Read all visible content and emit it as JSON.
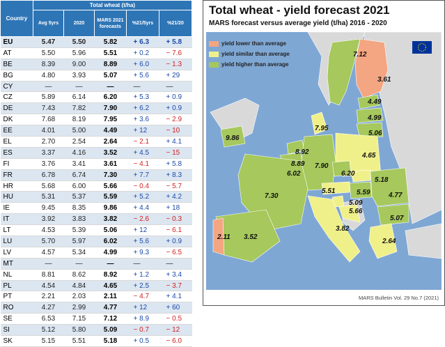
{
  "table": {
    "headers": {
      "country": "Country",
      "group": "Total wheat (t/ha)",
      "avg5": "Avg 5yrs",
      "y2020": "2020",
      "mars": "MARS 2021 forecasts",
      "pct5": "%21/5yrs",
      "pct20": "%21/20"
    },
    "rows": [
      {
        "c": "EU",
        "avg": "5.47",
        "y20": "5.50",
        "f": "5.82",
        "p5": "+ 6.3",
        "p20": "+ 5.8"
      },
      {
        "c": "AT",
        "avg": "5.50",
        "y20": "5.96",
        "f": "5.51",
        "p5": "+ 0.2",
        "p20": "− 7.6"
      },
      {
        "c": "BE",
        "avg": "8.39",
        "y20": "9.00",
        "f": "8.89",
        "p5": "+ 6.0",
        "p20": "− 1.3"
      },
      {
        "c": "BG",
        "avg": "4.80",
        "y20": "3.93",
        "f": "5.07",
        "p5": "+ 5.6",
        "p20": "+ 29"
      },
      {
        "c": "CY",
        "avg": "—",
        "y20": "—",
        "f": "—",
        "p5": "—",
        "p20": "—"
      },
      {
        "c": "CZ",
        "avg": "5.89",
        "y20": "6.14",
        "f": "6.20",
        "p5": "+ 5.3",
        "p20": "+ 0.9"
      },
      {
        "c": "DE",
        "avg": "7.43",
        "y20": "7.82",
        "f": "7.90",
        "p5": "+ 6.2",
        "p20": "+ 0.9"
      },
      {
        "c": "DK",
        "avg": "7.68",
        "y20": "8.19",
        "f": "7.95",
        "p5": "+ 3.6",
        "p20": "− 2.9"
      },
      {
        "c": "EE",
        "avg": "4.01",
        "y20": "5.00",
        "f": "4.49",
        "p5": "+ 12",
        "p20": "− 10"
      },
      {
        "c": "EL",
        "avg": "2.70",
        "y20": "2.54",
        "f": "2.64",
        "p5": "− 2.1",
        "p20": "+ 4.1"
      },
      {
        "c": "ES",
        "avg": "3.37",
        "y20": "4.16",
        "f": "3.52",
        "p5": "+ 4.5",
        "p20": "− 15"
      },
      {
        "c": "FI",
        "avg": "3.76",
        "y20": "3.41",
        "f": "3.61",
        "p5": "− 4.1",
        "p20": "+ 5.8"
      },
      {
        "c": "FR",
        "avg": "6.78",
        "y20": "6.74",
        "f": "7.30",
        "p5": "+ 7.7",
        "p20": "+ 8.3"
      },
      {
        "c": "HR",
        "avg": "5.68",
        "y20": "6.00",
        "f": "5.66",
        "p5": "− 0.4",
        "p20": "− 5.7"
      },
      {
        "c": "HU",
        "avg": "5.31",
        "y20": "5.37",
        "f": "5.59",
        "p5": "+ 5.2",
        "p20": "+ 4.2"
      },
      {
        "c": "IE",
        "avg": "9.45",
        "y20": "8.35",
        "f": "9.86",
        "p5": "+ 4.4",
        "p20": "+ 18"
      },
      {
        "c": "IT",
        "avg": "3.92",
        "y20": "3.83",
        "f": "3.82",
        "p5": "− 2.6",
        "p20": "− 0.3"
      },
      {
        "c": "LT",
        "avg": "4.53",
        "y20": "5.39",
        "f": "5.06",
        "p5": "+ 12",
        "p20": "− 6.1"
      },
      {
        "c": "LU",
        "avg": "5.70",
        "y20": "5.97",
        "f": "6.02",
        "p5": "+ 5.6",
        "p20": "+ 0.9"
      },
      {
        "c": "LV",
        "avg": "4.57",
        "y20": "5.34",
        "f": "4.99",
        "p5": "+ 9.3",
        "p20": "− 6.5"
      },
      {
        "c": "MT",
        "avg": "—",
        "y20": "—",
        "f": "—",
        "p5": "—",
        "p20": "—"
      },
      {
        "c": "NL",
        "avg": "8.81",
        "y20": "8.62",
        "f": "8.92",
        "p5": "+ 1.2",
        "p20": "+ 3.4"
      },
      {
        "c": "PL",
        "avg": "4.54",
        "y20": "4.84",
        "f": "4.65",
        "p5": "+ 2.5",
        "p20": "− 3.7"
      },
      {
        "c": "PT",
        "avg": "2.21",
        "y20": "2.03",
        "f": "2.11",
        "p5": "− 4.7",
        "p20": "+ 4.1"
      },
      {
        "c": "RO",
        "avg": "4.27",
        "y20": "2.99",
        "f": "4.77",
        "p5": "+ 12",
        "p20": "+ 60"
      },
      {
        "c": "SE",
        "avg": "6.53",
        "y20": "7.15",
        "f": "7.12",
        "p5": "+ 8.9",
        "p20": "− 0.5"
      },
      {
        "c": "SI",
        "avg": "5.12",
        "y20": "5.80",
        "f": "5.09",
        "p5": "− 0.7",
        "p20": "− 12"
      },
      {
        "c": "SK",
        "avg": "5.15",
        "y20": "5.51",
        "f": "5.18",
        "p5": "+ 0.5",
        "p20": "− 6.0"
      }
    ]
  },
  "map": {
    "title": "Total wheat - yield forecast 2021",
    "subtitle": "MARS forecast versus average yield (t/ha) 2016 - 2020",
    "legend": [
      {
        "label": "yield lower than average",
        "color": "#f4a582"
      },
      {
        "label": "yield similar than average",
        "color": "#f0f08a"
      },
      {
        "label": "yield higher than average",
        "color": "#a6c85c"
      }
    ],
    "footer": "MARS Bulletin Vol. 29 No.7 (2021)",
    "sea_color": "#7fa7d4",
    "colors": {
      "lower": "#f4a582",
      "similar": "#f0f08a",
      "higher": "#a6c85c",
      "outside": "#d9d9d9"
    },
    "labels": [
      "7.12",
      "3.61",
      "4.49",
      "4.99",
      "5.06",
      "9.86",
      "7.95",
      "8.92",
      "8.89",
      "6.02",
      "7.90",
      "4.65",
      "6.20",
      "5.18",
      "5.51",
      "5.59",
      "4.77",
      "5.09",
      "5.66",
      "7.30",
      "3.82",
      "5.07",
      "2.64",
      "2.11",
      "3.52"
    ],
    "eu_flag_icon": "eu-flag-icon"
  }
}
